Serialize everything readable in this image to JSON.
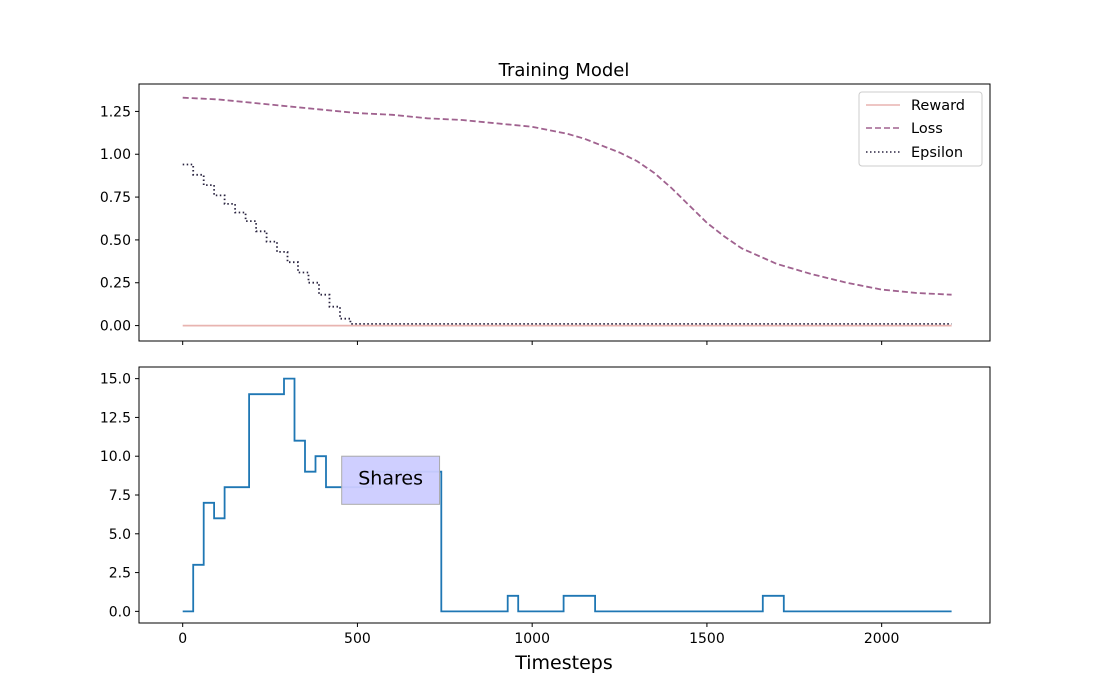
{
  "chart_data": [
    {
      "type": "line",
      "title": "Training Model",
      "xlabel": "",
      "ylabel": "",
      "xlim": [
        -125,
        2310
      ],
      "ylim": [
        -0.09,
        1.41
      ],
      "xticks": [
        0,
        500,
        1000,
        1500,
        2000
      ],
      "show_xtick_labels": false,
      "yticks": [
        0.0,
        0.25,
        0.5,
        0.75,
        1.0,
        1.25
      ],
      "ytick_labels": [
        "0.00",
        "0.25",
        "0.50",
        "0.75",
        "1.00",
        "1.25"
      ],
      "grid": false,
      "legend": {
        "position": "top-right",
        "entries": [
          "Reward",
          "Loss",
          "Epsilon"
        ]
      },
      "series": [
        {
          "name": "Reward",
          "style": "solid",
          "color": "#e8b4b0",
          "x": [
            0,
            100,
            200,
            300,
            400,
            500,
            700,
            1000,
            1500,
            2000,
            2200
          ],
          "y": [
            0,
            0,
            0,
            0,
            0,
            0,
            0,
            0,
            0,
            0,
            0
          ]
        },
        {
          "name": "Loss",
          "style": "dashed",
          "color": "#a0628f",
          "x": [
            0,
            100,
            200,
            300,
            400,
            500,
            600,
            700,
            800,
            900,
            1000,
            1050,
            1100,
            1150,
            1200,
            1250,
            1300,
            1350,
            1400,
            1450,
            1500,
            1550,
            1600,
            1700,
            1800,
            1900,
            2000,
            2100,
            2200
          ],
          "y": [
            1.33,
            1.32,
            1.3,
            1.28,
            1.26,
            1.24,
            1.23,
            1.21,
            1.2,
            1.18,
            1.16,
            1.14,
            1.12,
            1.09,
            1.05,
            1.01,
            0.96,
            0.89,
            0.8,
            0.7,
            0.6,
            0.52,
            0.45,
            0.36,
            0.3,
            0.25,
            0.21,
            0.19,
            0.18
          ]
        },
        {
          "name": "Epsilon",
          "style": "dotted",
          "color": "#2a2440",
          "x": [
            0,
            30,
            60,
            90,
            120,
            150,
            180,
            210,
            240,
            270,
            300,
            330,
            360,
            390,
            420,
            450,
            480,
            1000,
            1500,
            2200
          ],
          "y": [
            0.94,
            0.88,
            0.82,
            0.76,
            0.71,
            0.66,
            0.61,
            0.55,
            0.49,
            0.43,
            0.37,
            0.31,
            0.25,
            0.18,
            0.11,
            0.04,
            0.01,
            0.01,
            0.01,
            0.01
          ],
          "step": true
        }
      ]
    },
    {
      "type": "line",
      "title": "",
      "xlabel": "Timesteps",
      "ylabel": "",
      "xlim": [
        -125,
        2310
      ],
      "ylim": [
        -0.75,
        15.75
      ],
      "xticks": [
        0,
        500,
        1000,
        1500,
        2000
      ],
      "xtick_labels": [
        "0",
        "500",
        "1000",
        "1500",
        "2000"
      ],
      "yticks": [
        0.0,
        2.5,
        5.0,
        7.5,
        10.0,
        12.5,
        15.0
      ],
      "ytick_labels": [
        "0.0",
        "2.5",
        "5.0",
        "7.5",
        "10.0",
        "12.5",
        "15.0"
      ],
      "grid": false,
      "series": [
        {
          "color": "#1f77b4",
          "step": true,
          "x": [
            0,
            30,
            60,
            90,
            120,
            190,
            290,
            320,
            350,
            380,
            410,
            540,
            740,
            930,
            960,
            1090,
            1180,
            1660,
            1720,
            2200
          ],
          "y": [
            0,
            3,
            7,
            6,
            8,
            14,
            15,
            11,
            9,
            10,
            8,
            9,
            0,
            1,
            0,
            1,
            0,
            1,
            0,
            0
          ]
        }
      ],
      "annotations": [
        {
          "text": "Shares",
          "x": [
            455,
            735
          ],
          "y": [
            6.9,
            10.0
          ],
          "box_color": "#ccccff"
        }
      ]
    }
  ]
}
